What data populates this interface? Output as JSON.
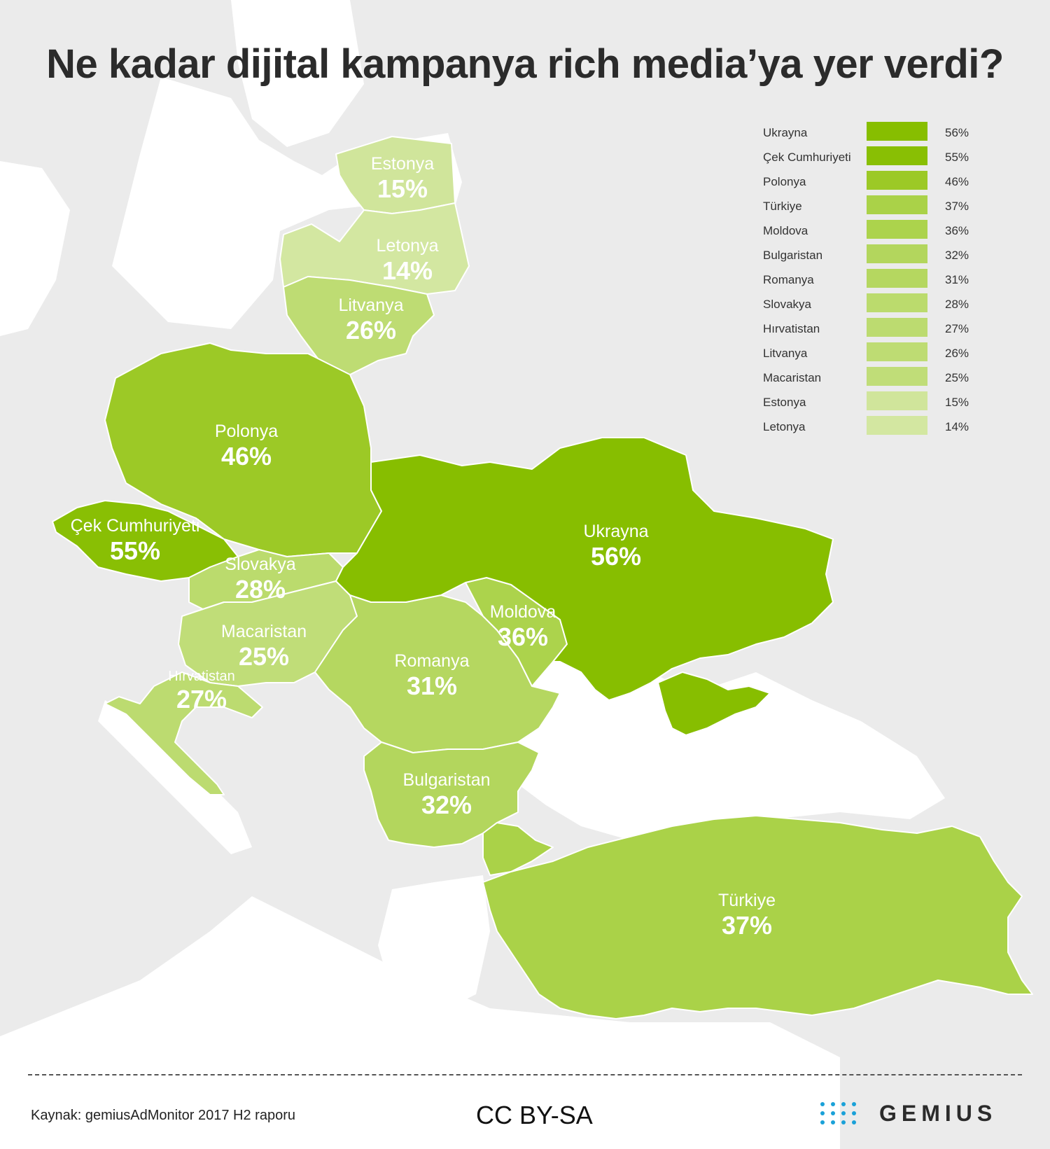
{
  "title": "Ne kadar dijital kampanya rich media’ya yer verdi?",
  "countries": [
    {
      "name": "Ukrayna",
      "value": "56%",
      "color": "#87be00"
    },
    {
      "name": "Çek Cumhuriyeti",
      "value": "55%",
      "color": "#89bf04"
    },
    {
      "name": "Polonya",
      "value": "46%",
      "color": "#9cc926"
    },
    {
      "name": "Türkiye",
      "value": "37%",
      "color": "#aad248"
    },
    {
      "name": "Moldova",
      "value": "36%",
      "color": "#acd34c"
    },
    {
      "name": "Bulgaristan",
      "value": "32%",
      "color": "#b3d65d"
    },
    {
      "name": "Romanya",
      "value": "31%",
      "color": "#b5d760"
    },
    {
      "name": "Slovakya",
      "value": "28%",
      "color": "#bbdb6d"
    },
    {
      "name": "Hırvatistan",
      "value": "27%",
      "color": "#bcdb70"
    },
    {
      "name": "Litvanya",
      "value": "26%",
      "color": "#bedc73"
    },
    {
      "name": "Macaristan",
      "value": "25%",
      "color": "#c0dd78"
    },
    {
      "name": "Estonya",
      "value": "15%",
      "color": "#d0e59b"
    },
    {
      "name": "Letonya",
      "value": "14%",
      "color": "#d3e7a1"
    }
  ],
  "footer": {
    "source": "Kaynak: gemiusAdMonitor 2017 H2 raporu",
    "license": "CC BY-SA",
    "logo_text": "GEMIUS"
  },
  "colors": {
    "background_land": "#ebebeb",
    "sea": "#ffffff",
    "border": "#ffffff",
    "logo_accent": "#1aa1d8"
  }
}
